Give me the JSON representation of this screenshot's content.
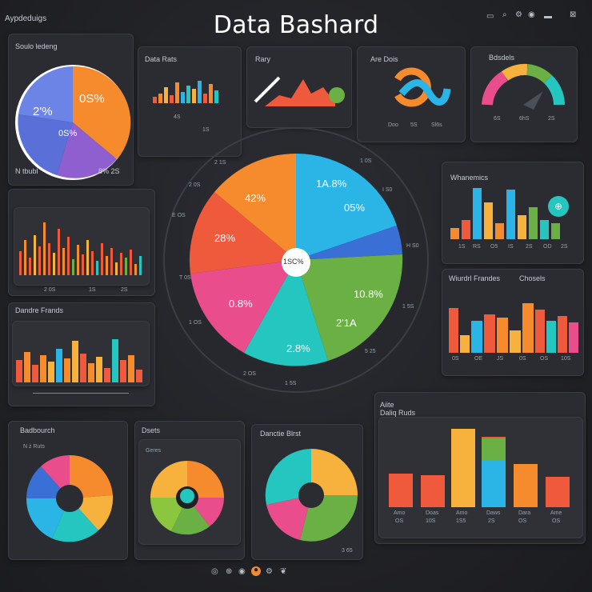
{
  "header": {
    "title": "Data Bashard",
    "app_label": "Aypdeduigs",
    "right_label_1": "ℰ",
    "right_label_2": "ℰ"
  },
  "panel_pie_left": {
    "title": "Soulo ledeng",
    "subtitle": "",
    "labels": [
      "2'%",
      "0S%",
      "0S%"
    ],
    "footer_left": "N tbubl",
    "footer_right": "8% 2S"
  },
  "panel_bars_1": {
    "title": "Data Rats",
    "subtitle": "",
    "axis": [
      "4S",
      "1S"
    ]
  },
  "panel_line_1": {
    "title": "Rary",
    "subtitle": ""
  },
  "panel_arc": {
    "title": "Are Dois",
    "axis": [
      "Doo",
      "5S",
      "Sl6s"
    ]
  },
  "panel_gauge": {
    "title": "Bdsdels",
    "subtitle": "",
    "axis": [
      "6S",
      "6hS",
      "2S"
    ]
  },
  "center_pie": {
    "center_label": "1SC%",
    "labels": [
      "42%",
      "1A.8%",
      "05%",
      "28%",
      "0.8%",
      "10.8%",
      "2'1A",
      "2.8%"
    ],
    "ring_labels": [
      "1 0S",
      "I S0",
      "2 0S",
      "2 1S",
      "H S0",
      "1 5S",
      "E OS",
      "T 0S",
      "1 OS",
      "2 OS",
      "1 5S",
      "5 25"
    ]
  },
  "panel_bars_left_2": {
    "axis": [
      "2 0S",
      "1S",
      "2S"
    ]
  },
  "panel_bars_left_3": {
    "title": "Dandre Frands",
    "subtitle": ""
  },
  "panel_right_1": {
    "title": "Whanemics",
    "axis": [
      "1S",
      "RS",
      "O5",
      "IS",
      "2S",
      "OD",
      "2S"
    ]
  },
  "panel_right_2": {
    "title_left": "Wiurdrl Frandes",
    "title_right": "Chosels",
    "axis": [
      "0S",
      "OE",
      "JS",
      "0S",
      "OS",
      "10S"
    ]
  },
  "panel_donut_1": {
    "title": "Badbourch",
    "subtitle": "N ż Ruts"
  },
  "panel_donut_2": {
    "title": "Dsets",
    "subtitle": "Geres"
  },
  "panel_donut_3": {
    "title": "Danctie Blrst",
    "axis": [
      "3 65"
    ]
  },
  "panel_bars_big": {
    "title": "Aiite",
    "subtitle": "Daliq Ruds",
    "axis_top": [
      "Amo",
      "Doas",
      "Amo",
      "Daws",
      "Dara",
      "Ame"
    ],
    "axis_bottom": [
      "OS",
      "10S",
      "1S5",
      "2S",
      "OS",
      "OS"
    ]
  },
  "footer_icons": [
    "circle-icon",
    "globe-icon",
    "user-icon",
    "fire-icon",
    "gear-icon",
    "leaf-icon"
  ],
  "colors": {
    "orange": "#f58b2c",
    "blue": "#2ab5e6",
    "teal": "#26c6c0",
    "green": "#6bb044",
    "red": "#ef5a3d",
    "pink": "#ea4d8c",
    "purple": "#7b5bc4",
    "yellow": "#f6b23c",
    "darkbg": "#2a2c31"
  }
}
